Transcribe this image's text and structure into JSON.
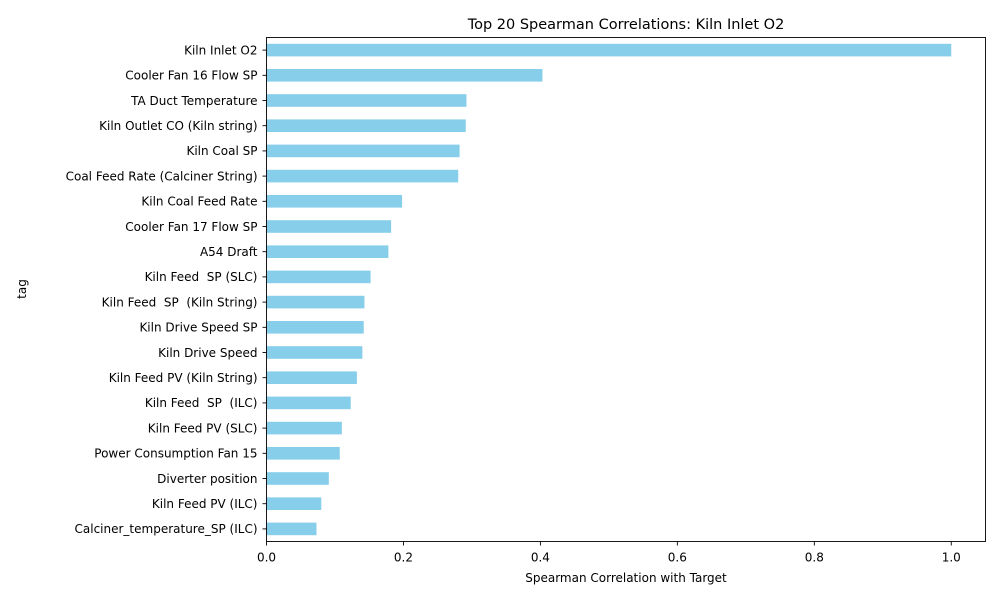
{
  "chart_data": {
    "type": "bar",
    "orientation": "horizontal",
    "title": "Top 20 Spearman Correlations: Kiln Inlet O2",
    "xlabel": "Spearman Correlation with Target",
    "ylabel": "tag",
    "xlim": [
      0.0,
      1.05
    ],
    "xticks": [
      0.0,
      0.2,
      0.4,
      0.6,
      0.8,
      1.0
    ],
    "xtick_labels": [
      "0.0",
      "0.2",
      "0.4",
      "0.6",
      "0.8",
      "1.0"
    ],
    "grid": false,
    "bar_color": "#87ceeb",
    "categories": [
      "Kiln Inlet O2",
      "Cooler Fan 16 Flow SP",
      "TA Duct Temperature",
      "Kiln Outlet CO (Kiln string)",
      "Kiln Coal SP",
      "Coal Feed Rate (Calciner String)",
      "Kiln Coal Feed Rate",
      "Cooler Fan 17 Flow SP",
      "A54 Draft",
      "Kiln Feed  SP (SLC)",
      "Kiln Feed  SP  (Kiln String)",
      "Kiln Drive Speed SP",
      "Kiln Drive Speed",
      "Kiln Feed PV (Kiln String)",
      "Kiln Feed  SP  (ILC)",
      "Kiln Feed PV (SLC)",
      "Power Consumption Fan 15",
      "Diverter position",
      "Kiln Feed PV (ILC)",
      "Calciner_temperature_SP (ILC)"
    ],
    "values": [
      1.0,
      0.403,
      0.292,
      0.291,
      0.282,
      0.28,
      0.198,
      0.182,
      0.178,
      0.152,
      0.143,
      0.142,
      0.14,
      0.132,
      0.123,
      0.11,
      0.107,
      0.091,
      0.08,
      0.073
    ]
  }
}
